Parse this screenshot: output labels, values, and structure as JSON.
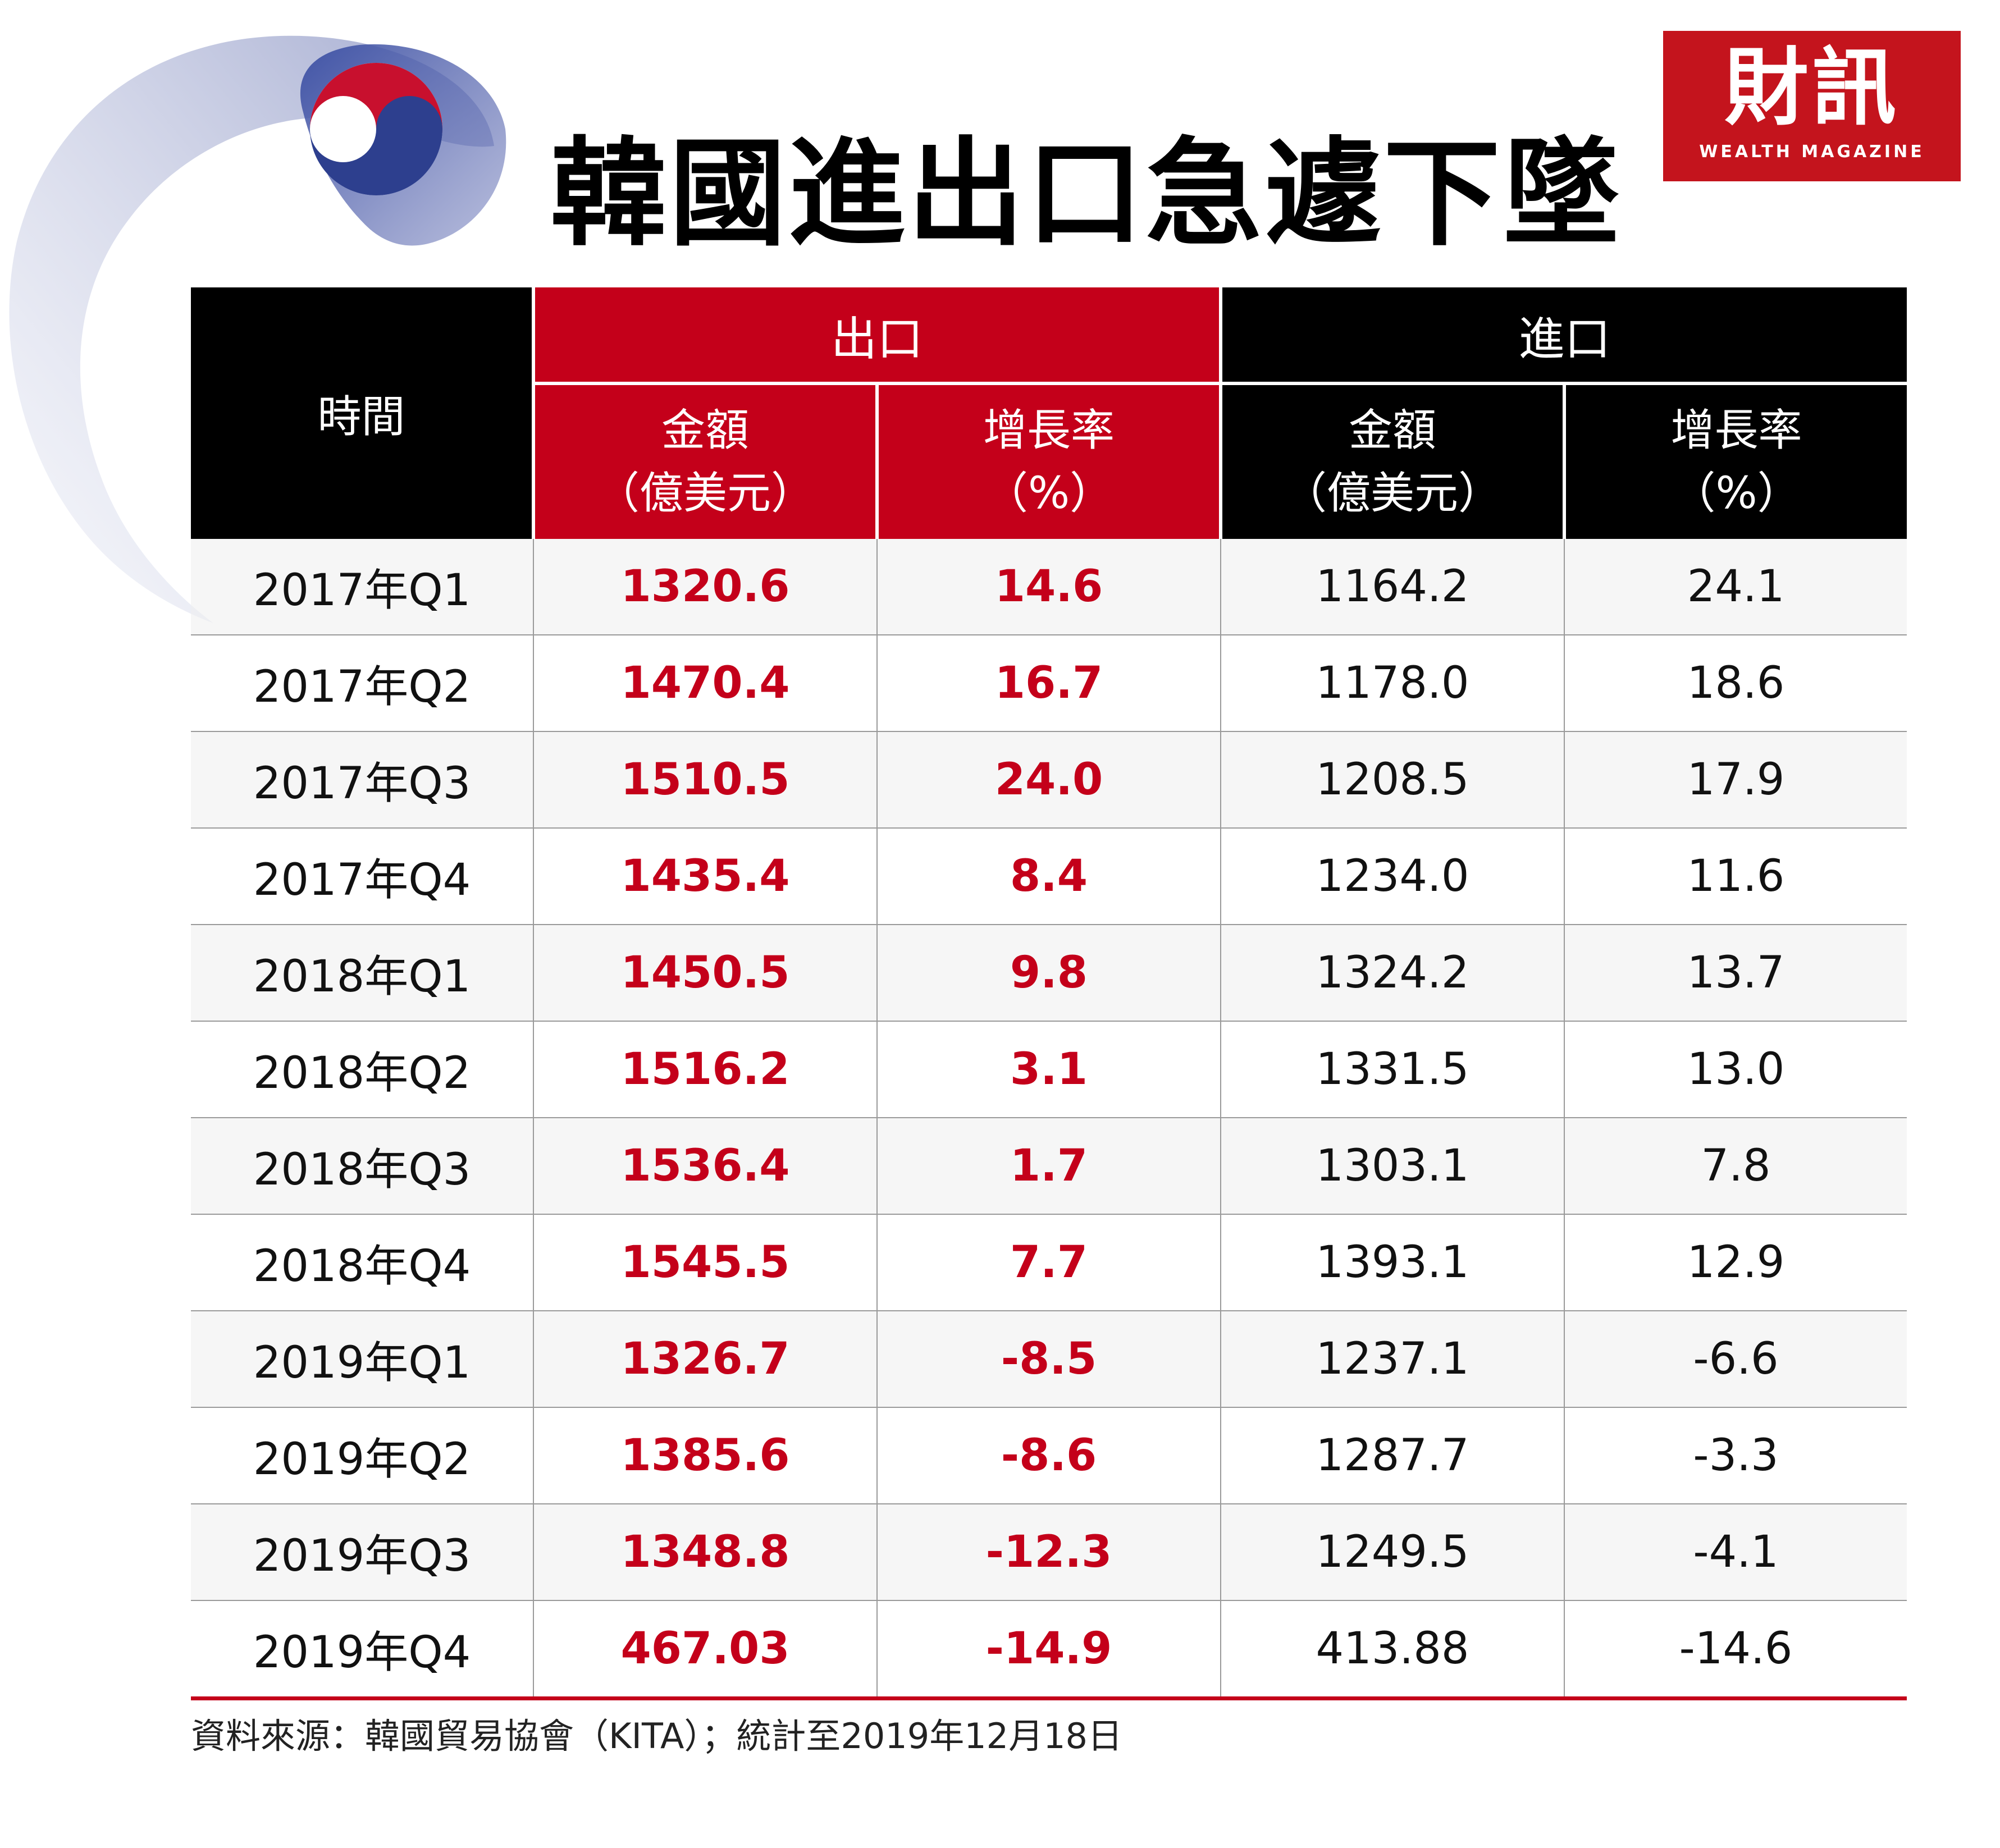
{
  "title": "韓國進出口急遽下墜",
  "logo": {
    "main": "財訊",
    "sub": "WEALTH MAGAZINE"
  },
  "colors": {
    "accent_red": "#c4001a",
    "header_black": "#000000",
    "flag_blue": "#2d3f8e"
  },
  "icons": {
    "decoration": "taegeuk-flag-brush-icon"
  },
  "chart_data": {
    "type": "table",
    "title": "韓國進出口急遽下墜",
    "header": {
      "time": "時間",
      "export_group": "出口",
      "import_group": "進口",
      "amount_line1": "金額",
      "amount_line2": "（億美元）",
      "growth_line1": "增長率",
      "growth_line2": "（%）"
    },
    "rows": [
      {
        "period": "2017年Q1",
        "export_amount": "1320.6",
        "export_growth": "14.6",
        "import_amount": "1164.2",
        "import_growth": "24.1"
      },
      {
        "period": "2017年Q2",
        "export_amount": "1470.4",
        "export_growth": "16.7",
        "import_amount": "1178.0",
        "import_growth": "18.6"
      },
      {
        "period": "2017年Q3",
        "export_amount": "1510.5",
        "export_growth": "24.0",
        "import_amount": "1208.5",
        "import_growth": "17.9"
      },
      {
        "period": "2017年Q4",
        "export_amount": "1435.4",
        "export_growth": "8.4",
        "import_amount": "1234.0",
        "import_growth": "11.6"
      },
      {
        "period": "2018年Q1",
        "export_amount": "1450.5",
        "export_growth": "9.8",
        "import_amount": "1324.2",
        "import_growth": "13.7"
      },
      {
        "period": "2018年Q2",
        "export_amount": "1516.2",
        "export_growth": "3.1",
        "import_amount": "1331.5",
        "import_growth": "13.0"
      },
      {
        "period": "2018年Q3",
        "export_amount": "1536.4",
        "export_growth": "1.7",
        "import_amount": "1303.1",
        "import_growth": "7.8"
      },
      {
        "period": "2018年Q4",
        "export_amount": "1545.5",
        "export_growth": "7.7",
        "import_amount": "1393.1",
        "import_growth": "12.9"
      },
      {
        "period": "2019年Q1",
        "export_amount": "1326.7",
        "export_growth": "-8.5",
        "import_amount": "1237.1",
        "import_growth": "-6.6"
      },
      {
        "period": "2019年Q2",
        "export_amount": "1385.6",
        "export_growth": "-8.6",
        "import_amount": "1287.7",
        "import_growth": "-3.3"
      },
      {
        "period": "2019年Q3",
        "export_amount": "1348.8",
        "export_growth": "-12.3",
        "import_amount": "1249.5",
        "import_growth": "-4.1"
      },
      {
        "period": "2019年Q4",
        "export_amount": "467.03",
        "export_growth": "-14.9",
        "import_amount": "413.88",
        "import_growth": "-14.6"
      }
    ]
  },
  "source": "資料來源：韓國貿易協會（KITA）；統計至2019年12月18日"
}
